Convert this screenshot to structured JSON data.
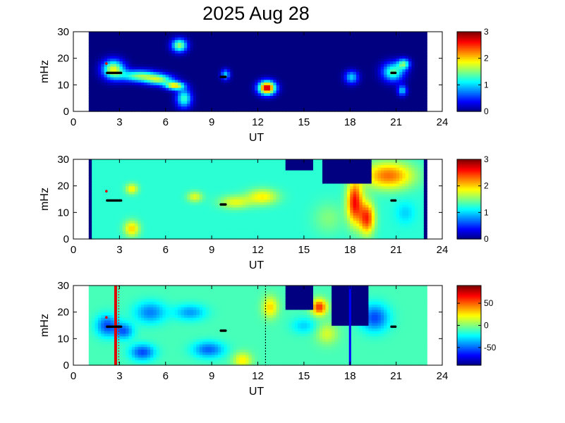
{
  "figure": {
    "title": "2025 Aug 28"
  },
  "chart_data": [
    {
      "type": "heatmap",
      "xlabel": "UT",
      "ylabel": "mHz",
      "xlim": [
        0,
        24
      ],
      "ylim": [
        0,
        30
      ],
      "xticks": [
        "0",
        "3",
        "6",
        "9",
        "12",
        "15",
        "18",
        "21",
        "24"
      ],
      "yticks": [
        "0",
        "10",
        "20",
        "30"
      ],
      "colorbar": {
        "min": 0,
        "max": 3,
        "ticks": [
          "0",
          "1",
          "2",
          "3"
        ]
      },
      "data_range_ut": [
        1,
        23
      ],
      "background_value": 0,
      "blobs": [
        {
          "ut": 2.6,
          "f": 16,
          "wx": 0.7,
          "wy": 3.5,
          "v": 1.8
        },
        {
          "ut": 4.3,
          "f": 13.5,
          "wx": 1.2,
          "wy": 2.2,
          "v": 1.5
        },
        {
          "ut": 5.6,
          "f": 12,
          "wx": 0.9,
          "wy": 2,
          "v": 1.4
        },
        {
          "ut": 6.6,
          "f": 9.8,
          "wx": 0.6,
          "wy": 1.5,
          "v": 1.9
        },
        {
          "ut": 7.2,
          "f": 5,
          "wx": 0.5,
          "wy": 3.5,
          "v": 1.3
        },
        {
          "ut": 6.9,
          "f": 25,
          "wx": 0.5,
          "wy": 2.5,
          "v": 1.6
        },
        {
          "ut": 9.9,
          "f": 14,
          "wx": 0.3,
          "wy": 2,
          "v": 1.0
        },
        {
          "ut": 12.6,
          "f": 9,
          "wx": 0.55,
          "wy": 2.5,
          "v": 2.9
        },
        {
          "ut": 18.1,
          "f": 13,
          "wx": 0.45,
          "wy": 2.5,
          "v": 1.0
        },
        {
          "ut": 20.8,
          "f": 15,
          "wx": 0.7,
          "wy": 3.5,
          "v": 1.4
        },
        {
          "ut": 21.5,
          "f": 18,
          "wx": 0.4,
          "wy": 2,
          "v": 1.3
        },
        {
          "ut": 21.4,
          "f": 8,
          "wx": 0.3,
          "wy": 2,
          "v": 1.0
        }
      ],
      "markers_black": [
        {
          "ut_start": 2.2,
          "ut_end": 3.1,
          "f": 14.5
        },
        {
          "ut_start": 9.6,
          "ut_end": 9.9,
          "f": 13
        },
        {
          "ut_start": 20.7,
          "ut_end": 20.95,
          "f": 14.5
        }
      ],
      "markers_red": [
        {
          "ut": 2.15,
          "f": 18
        }
      ]
    },
    {
      "type": "heatmap",
      "xlabel": "UT",
      "ylabel": "mHz",
      "xlim": [
        0,
        24
      ],
      "ylim": [
        0,
        30
      ],
      "xticks": [
        "0",
        "3",
        "6",
        "9",
        "12",
        "15",
        "18",
        "21",
        "24"
      ],
      "yticks": [
        "0",
        "10",
        "20",
        "30"
      ],
      "colorbar": {
        "min": 0,
        "max": 3,
        "ticks": [
          "0",
          "1",
          "2",
          "3"
        ]
      },
      "data_range_ut": [
        1,
        23
      ],
      "background_value": 1.25,
      "edge_columns_value": 0,
      "blobs": [
        {
          "ut": 3.8,
          "f": 4,
          "wx": 0.5,
          "wy": 3,
          "v": 2.0
        },
        {
          "ut": 3.8,
          "f": 19,
          "wx": 0.4,
          "wy": 2,
          "v": 1.9
        },
        {
          "ut": 7.9,
          "f": 16,
          "wx": 0.5,
          "wy": 2,
          "v": 1.8
        },
        {
          "ut": 10.5,
          "f": 14,
          "wx": 1.0,
          "wy": 2.5,
          "v": 1.8
        },
        {
          "ut": 12.3,
          "f": 16,
          "wx": 1.0,
          "wy": 3,
          "v": 1.9
        },
        {
          "ut": 16.6,
          "f": 8,
          "wx": 1.0,
          "wy": 6,
          "v": 1.5
        },
        {
          "ut": 18.3,
          "f": 14,
          "wx": 0.5,
          "wy": 8,
          "v": 2.6
        },
        {
          "ut": 19.1,
          "f": 8,
          "wx": 0.5,
          "wy": 6,
          "v": 2.5
        },
        {
          "ut": 20.5,
          "f": 24,
          "wx": 1.6,
          "wy": 5,
          "v": 2.3
        },
        {
          "ut": 21.6,
          "f": 10,
          "wx": 0.6,
          "wy": 4,
          "v": 1.0
        }
      ],
      "masked_value": 0,
      "masked_regions": [
        {
          "ut_start": 16.3,
          "ut_end": 19.3,
          "f_top": 30,
          "f_bottom": 21
        },
        {
          "ut_start": 13.9,
          "ut_end": 15.7,
          "f_top": 30,
          "f_bottom": 26
        }
      ],
      "markers_black": [
        {
          "ut_start": 2.2,
          "ut_end": 3.1,
          "f": 14.5
        },
        {
          "ut_start": 9.6,
          "ut_end": 9.9,
          "f": 13
        },
        {
          "ut_start": 20.7,
          "ut_end": 20.95,
          "f": 14.5
        }
      ],
      "markers_red": [
        {
          "ut": 2.15,
          "f": 18
        }
      ]
    },
    {
      "type": "heatmap",
      "xlabel": "UT",
      "ylabel": "mHz",
      "xlim": [
        0,
        24
      ],
      "ylim": [
        0,
        30
      ],
      "xticks": [
        "0",
        "3",
        "6",
        "9",
        "12",
        "15",
        "18",
        "21",
        "24"
      ],
      "yticks": [
        "0",
        "10",
        "20",
        "30"
      ],
      "colorbar": {
        "min": -90,
        "max": 90,
        "ticks": [
          "50",
          "0",
          "-50"
        ],
        "tick_values": [
          50,
          0,
          -50
        ]
      },
      "data_range_ut": [
        1,
        23
      ],
      "background_value": -10,
      "blobs": [
        {
          "ut": 2.2,
          "f": 15,
          "wx": 0.7,
          "wy": 4,
          "v": -55
        },
        {
          "ut": 3.3,
          "f": 13,
          "wx": 0.6,
          "wy": 3,
          "v": -50
        },
        {
          "ut": 5.0,
          "f": 20,
          "wx": 1.0,
          "wy": 4,
          "v": -45
        },
        {
          "ut": 7.6,
          "f": 20,
          "wx": 1.0,
          "wy": 3,
          "v": -40
        },
        {
          "ut": 4.5,
          "f": 5,
          "wx": 0.8,
          "wy": 3,
          "v": -55
        },
        {
          "ut": 8.8,
          "f": 6,
          "wx": 1.0,
          "wy": 3,
          "v": -50
        },
        {
          "ut": 11.0,
          "f": 2,
          "wx": 0.6,
          "wy": 3,
          "v": 25
        },
        {
          "ut": 12.8,
          "f": 22,
          "wx": 0.5,
          "wy": 4,
          "v": 30
        },
        {
          "ut": 16.0,
          "f": 22,
          "wx": 0.5,
          "wy": 3,
          "v": 60
        },
        {
          "ut": 16.5,
          "f": 12,
          "wx": 0.7,
          "wy": 4,
          "v": 15
        },
        {
          "ut": 19.6,
          "f": 18,
          "wx": 0.9,
          "wy": 5,
          "v": -55
        },
        {
          "ut": 15.0,
          "f": 15,
          "wx": 0.8,
          "wy": 3,
          "v": -30
        }
      ],
      "masked_value": -90,
      "masked_regions": [
        {
          "ut_start": 16.9,
          "ut_end": 19.2,
          "f_top": 30,
          "f_bottom": 15
        },
        {
          "ut_start": 13.9,
          "ut_end": 15.5,
          "f_top": 30,
          "f_bottom": 21
        }
      ],
      "vertical_lines": [
        {
          "ut": 2.75,
          "color": "#e00000",
          "style": "solid",
          "width_ut": 0.18
        },
        {
          "ut": 2.95,
          "color": "#e00000",
          "style": "dotted",
          "width_ut": 0.05
        },
        {
          "ut": 12.5,
          "color": "#000000",
          "style": "dotted",
          "width_ut": 0.05
        },
        {
          "ut": 18.0,
          "color": "#0000ff",
          "style": "solid",
          "width_ut": 0.14
        }
      ],
      "markers_black": [
        {
          "ut_start": 2.2,
          "ut_end": 3.1,
          "f": 14.5
        },
        {
          "ut_start": 9.6,
          "ut_end": 9.9,
          "f": 13
        },
        {
          "ut_start": 20.7,
          "ut_end": 20.95,
          "f": 14.5
        }
      ],
      "markers_red": [
        {
          "ut": 2.15,
          "f": 18
        }
      ]
    }
  ]
}
